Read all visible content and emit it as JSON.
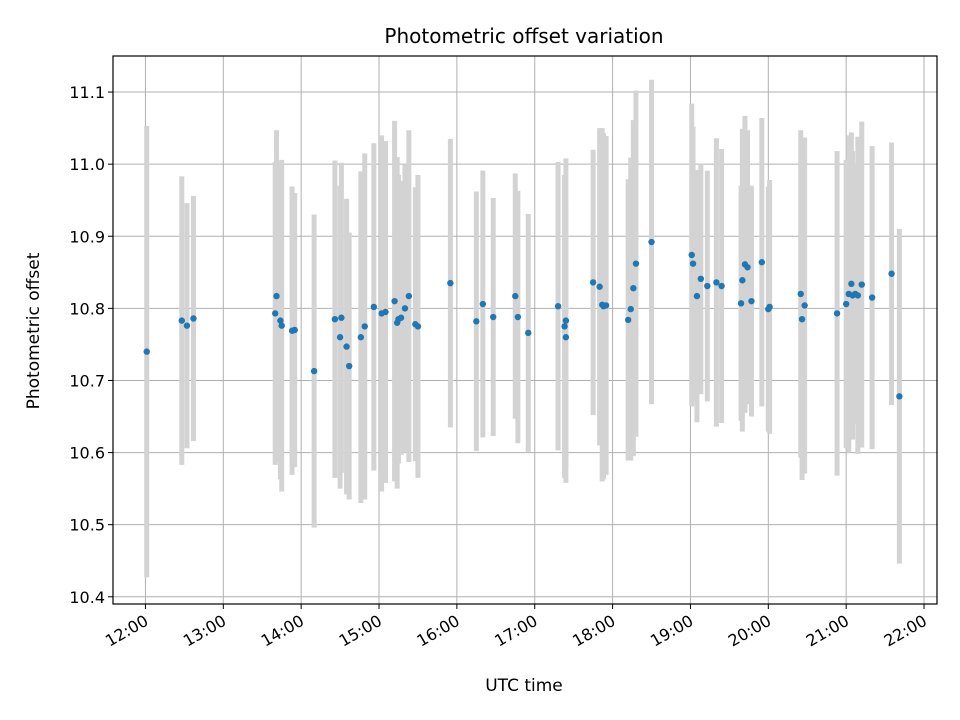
{
  "chart_data": {
    "type": "scatter",
    "title": "Photometric offset variation",
    "xlabel": "UTC time",
    "ylabel": "Photometric offset",
    "x_ticks": [
      "12:00",
      "13:00",
      "14:00",
      "15:00",
      "16:00",
      "17:00",
      "18:00",
      "19:00",
      "20:00",
      "21:00",
      "22:00"
    ],
    "y_ticks": [
      "10.4",
      "10.5",
      "10.6",
      "10.7",
      "10.8",
      "10.9",
      "11.0",
      "11.1"
    ],
    "xlim": [
      "11:35",
      "22:10"
    ],
    "ylim": [
      10.39,
      11.15
    ],
    "grid": true,
    "colors": {
      "points": "#1f77b4",
      "error_bars": "#d3d3d3",
      "grid": "#b0b0b0"
    },
    "series": [
      {
        "x": [
          "12:01",
          "12:28",
          "12:32",
          "12:37",
          "13:40",
          "13:41",
          "13:44",
          "13:45",
          "13:53",
          "13:55",
          "14:10",
          "14:26",
          "14:30",
          "14:31",
          "14:35",
          "14:37",
          "14:46",
          "14:49",
          "14:56",
          "15:02",
          "15:05",
          "15:12",
          "15:14",
          "15:15",
          "15:17",
          "15:20",
          "15:23",
          "15:28",
          "15:30",
          "15:55",
          "16:15",
          "16:20",
          "16:28",
          "16:45",
          "16:47",
          "16:55",
          "17:18",
          "17:23",
          "17:24",
          "17:24",
          "17:45",
          "17:50",
          "17:52",
          "17:53",
          "17:55",
          "18:12",
          "18:14",
          "18:16",
          "18:18",
          "18:30",
          "19:01",
          "19:02",
          "19:05",
          "19:08",
          "19:13",
          "19:20",
          "19:24",
          "19:39",
          "19:40",
          "19:42",
          "19:44",
          "19:47",
          "19:55",
          "20:00",
          "20:01",
          "20:25",
          "20:26",
          "20:28",
          "20:53",
          "21:00",
          "21:02",
          "21:04",
          "21:05",
          "21:07",
          "21:09",
          "21:12",
          "21:20",
          "21:35"
        ],
        "y": [
          10.74,
          10.783,
          10.776,
          10.786,
          10.793,
          10.817,
          10.783,
          10.776,
          10.769,
          10.77,
          10.713,
          10.785,
          10.76,
          10.787,
          10.747,
          10.72,
          10.76,
          10.775,
          10.802,
          10.793,
          10.795,
          10.81,
          10.78,
          10.785,
          10.787,
          10.8,
          10.817,
          10.778,
          10.775,
          10.835,
          10.782,
          10.806,
          10.788,
          10.817,
          10.788,
          10.766,
          10.803,
          10.775,
          10.783,
          10.76,
          10.836,
          10.83,
          10.805,
          10.803,
          10.804,
          10.784,
          10.799,
          10.828,
          10.862,
          10.892,
          10.874,
          10.862,
          10.817,
          10.841,
          10.831,
          10.836,
          10.831,
          10.807,
          10.839,
          10.861,
          10.857,
          10.81,
          10.864,
          10.799,
          10.802,
          10.82,
          10.785,
          10.804,
          10.793,
          10.806,
          10.82,
          10.834,
          10.818,
          10.82,
          10.818,
          10.833,
          10.815,
          10.848
        ],
        "yerr": [
          0.313,
          0.2,
          0.17,
          0.17,
          0.21,
          0.23,
          0.22,
          0.23,
          0.2,
          0.19,
          0.217,
          0.22,
          0.21,
          0.215,
          0.205,
          0.185,
          0.23,
          0.24,
          0.227,
          0.247,
          0.237,
          0.25,
          0.23,
          0.2,
          0.19,
          0.2,
          0.23,
          0.19,
          0.21,
          0.2,
          0.18,
          0.185,
          0.165,
          0.17,
          0.175,
          0.165,
          0.2,
          0.21,
          0.225,
          0.18,
          0.184,
          0.22,
          0.245,
          0.24,
          0.235,
          0.195,
          0.21,
          0.233,
          0.24,
          0.225,
          0.21,
          0.19,
          0.175,
          0.16,
          0.16,
          0.2,
          0.19,
          0.163,
          0.21,
          0.206,
          0.19,
          0.16,
          0.2,
          0.17,
          0.176,
          0.227,
          0.223,
          0.233,
          0.225,
          0.2,
          0.22,
          0.21,
          0.2,
          0.18,
          0.22,
          0.226,
          0.21,
          0.182
        ]
      },
      {
        "x": [
          "21:41"
        ],
        "y": [
          10.678
        ],
        "yerr_low": [
          0.232
        ],
        "yerr_high": [
          0.232
        ]
      }
    ]
  }
}
